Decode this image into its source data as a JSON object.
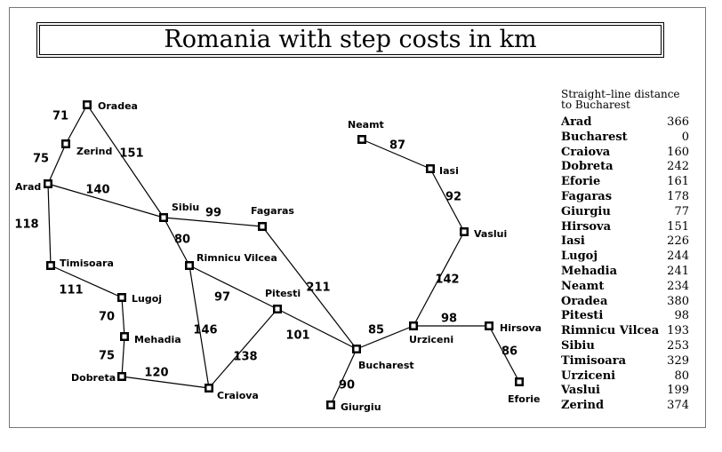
{
  "title": "Romania with step costs in km",
  "cities": [
    {
      "id": "oradea",
      "name": "Oradea"
    },
    {
      "id": "zerind",
      "name": "Zerind"
    },
    {
      "id": "arad",
      "name": "Arad"
    },
    {
      "id": "sibiu",
      "name": "Sibiu"
    },
    {
      "id": "fagaras",
      "name": "Fagaras"
    },
    {
      "id": "timisoara",
      "name": "Timisoara"
    },
    {
      "id": "rimnicu-vilcea",
      "name": "Rimnicu Vilcea"
    },
    {
      "id": "lugoj",
      "name": "Lugoj"
    },
    {
      "id": "pitesti",
      "name": "Pitesti"
    },
    {
      "id": "mehadia",
      "name": "Mehadia"
    },
    {
      "id": "dobreta",
      "name": "Dobreta"
    },
    {
      "id": "craiova",
      "name": "Craiova"
    },
    {
      "id": "bucharest",
      "name": "Bucharest"
    },
    {
      "id": "giurgiu",
      "name": "Giurgiu"
    },
    {
      "id": "neamt",
      "name": "Neamt"
    },
    {
      "id": "iasi",
      "name": "Iasi"
    },
    {
      "id": "vaslui",
      "name": "Vaslui"
    },
    {
      "id": "urziceni",
      "name": "Urziceni"
    },
    {
      "id": "hirsova",
      "name": "Hirsova"
    },
    {
      "id": "eforie",
      "name": "Eforie"
    }
  ],
  "roads": [
    {
      "from": "oradea",
      "to": "zerind",
      "cost": "71"
    },
    {
      "from": "zerind",
      "to": "arad",
      "cost": "75"
    },
    {
      "from": "oradea",
      "to": "sibiu",
      "cost": "151"
    },
    {
      "from": "arad",
      "to": "sibiu",
      "cost": "140"
    },
    {
      "from": "arad",
      "to": "timisoara",
      "cost": "118"
    },
    {
      "from": "sibiu",
      "to": "fagaras",
      "cost": "99"
    },
    {
      "from": "sibiu",
      "to": "rimnicu-vilcea",
      "cost": "80"
    },
    {
      "from": "timisoara",
      "to": "lugoj",
      "cost": "111"
    },
    {
      "from": "lugoj",
      "to": "mehadia",
      "cost": "70"
    },
    {
      "from": "mehadia",
      "to": "dobreta",
      "cost": "75"
    },
    {
      "from": "dobreta",
      "to": "craiova",
      "cost": "120"
    },
    {
      "from": "rimnicu-vilcea",
      "to": "craiova",
      "cost": "146"
    },
    {
      "from": "rimnicu-vilcea",
      "to": "pitesti",
      "cost": "97"
    },
    {
      "from": "craiova",
      "to": "pitesti",
      "cost": "138"
    },
    {
      "from": "pitesti",
      "to": "bucharest",
      "cost": "101"
    },
    {
      "from": "fagaras",
      "to": "bucharest",
      "cost": "211"
    },
    {
      "from": "bucharest",
      "to": "giurgiu",
      "cost": "90"
    },
    {
      "from": "bucharest",
      "to": "urziceni",
      "cost": "85"
    },
    {
      "from": "urziceni",
      "to": "vaslui",
      "cost": "142"
    },
    {
      "from": "vaslui",
      "to": "iasi",
      "cost": "92"
    },
    {
      "from": "iasi",
      "to": "neamt",
      "cost": "87"
    },
    {
      "from": "urziceni",
      "to": "hirsova",
      "cost": "98"
    },
    {
      "from": "hirsova",
      "to": "eforie",
      "cost": "86"
    }
  ],
  "sld_table": {
    "header_line1": "Straight–line distance",
    "header_line2": "to Bucharest",
    "rows": [
      {
        "city": "Arad",
        "distance": "366"
      },
      {
        "city": "Bucharest",
        "distance": "0"
      },
      {
        "city": "Craiova",
        "distance": "160"
      },
      {
        "city": "Dobreta",
        "distance": "242"
      },
      {
        "city": "Eforie",
        "distance": "161"
      },
      {
        "city": "Fagaras",
        "distance": "178"
      },
      {
        "city": "Giurgiu",
        "distance": "77"
      },
      {
        "city": "Hirsova",
        "distance": "151"
      },
      {
        "city": "Iasi",
        "distance": "226"
      },
      {
        "city": "Lugoj",
        "distance": "244"
      },
      {
        "city": "Mehadia",
        "distance": "241"
      },
      {
        "city": "Neamt",
        "distance": "234"
      },
      {
        "city": "Oradea",
        "distance": "380"
      },
      {
        "city": "Pitesti",
        "distance": "98"
      },
      {
        "city": "Rimnicu Vilcea",
        "distance": "193"
      },
      {
        "city": "Sibiu",
        "distance": "253"
      },
      {
        "city": "Timisoara",
        "distance": "329"
      },
      {
        "city": "Urziceni",
        "distance": "80"
      },
      {
        "city": "Vaslui",
        "distance": "199"
      },
      {
        "city": "Zerind",
        "distance": "374"
      }
    ]
  }
}
